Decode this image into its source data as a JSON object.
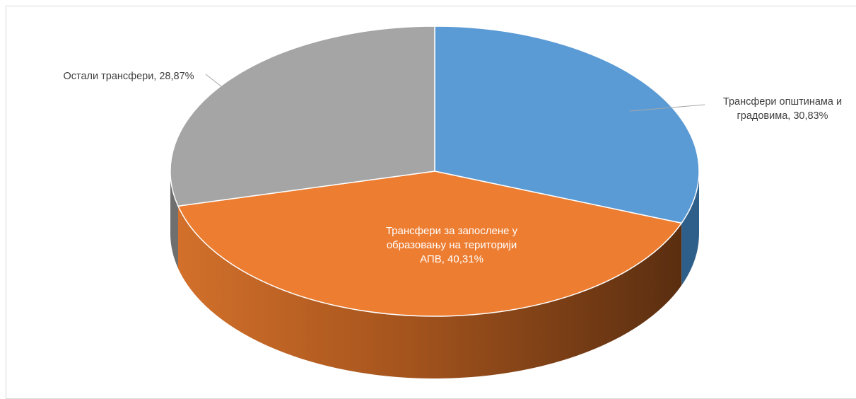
{
  "chart_data": {
    "type": "pie",
    "variant": "3d",
    "title": "",
    "slices": [
      {
        "label_lines": [
          "Трансфери општинама и",
          "градовима, 30,83%"
        ],
        "value": 30.83,
        "color": "#5b9bd5",
        "side_color": "#2e5f8a"
      },
      {
        "label_lines": [
          "Трансфери за запослене у",
          "образовању на територији",
          "АПВ, 40,31%"
        ],
        "value": 40.31,
        "color": "#ed7d31",
        "side_color": "#b85f1e"
      },
      {
        "label_lines": [
          "Остали трансфери, 28,87%"
        ],
        "value": 28.87,
        "color": "#a5a5a5",
        "side_color": "#6f6f6f"
      }
    ]
  }
}
